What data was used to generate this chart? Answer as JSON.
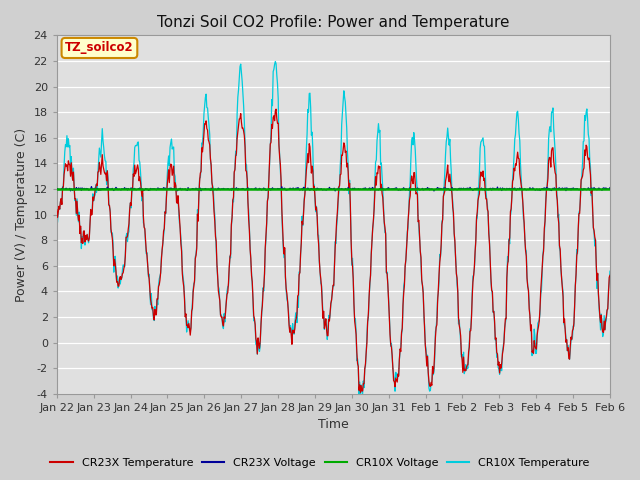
{
  "title": "Tonzi Soil CO2 Profile: Power and Temperature",
  "ylabel": "Power (V) / Temperature (C)",
  "xlabel": "Time",
  "ylim": [
    -4,
    24
  ],
  "yticks": [
    -4,
    -2,
    0,
    2,
    4,
    6,
    8,
    10,
    12,
    14,
    16,
    18,
    20,
    22,
    24
  ],
  "xtick_labels": [
    "Jan 22",
    "Jan 23",
    "Jan 24",
    "Jan 25",
    "Jan 26",
    "Jan 27",
    "Jan 28",
    "Jan 29",
    "Jan 30",
    "Jan 31",
    "Feb 1",
    "Feb 2",
    "Feb 3",
    "Feb 4",
    "Feb 5",
    "Feb 6"
  ],
  "annotation_text": "TZ_soilco2",
  "annotation_bg": "#ffffcc",
  "annotation_border": "#cc8800",
  "cr23x_temp_color": "#cc0000",
  "cr23x_volt_color": "#000099",
  "cr10x_volt_color": "#00aa00",
  "cr10x_temp_color": "#00ccdd",
  "cr10x_volt_value": 12.0,
  "cr23x_volt_value": 12.0,
  "plot_bg_color": "#e0e0e0",
  "fig_bg_color": "#d0d0d0",
  "grid_color": "#ffffff",
  "legend_labels": [
    "CR23X Temperature",
    "CR23X Voltage",
    "CR10X Voltage",
    "CR10X Temperature"
  ],
  "legend_colors": [
    "#cc0000",
    "#000099",
    "#00aa00",
    "#00ccdd"
  ],
  "title_fontsize": 11,
  "axis_fontsize": 9,
  "tick_fontsize": 8
}
